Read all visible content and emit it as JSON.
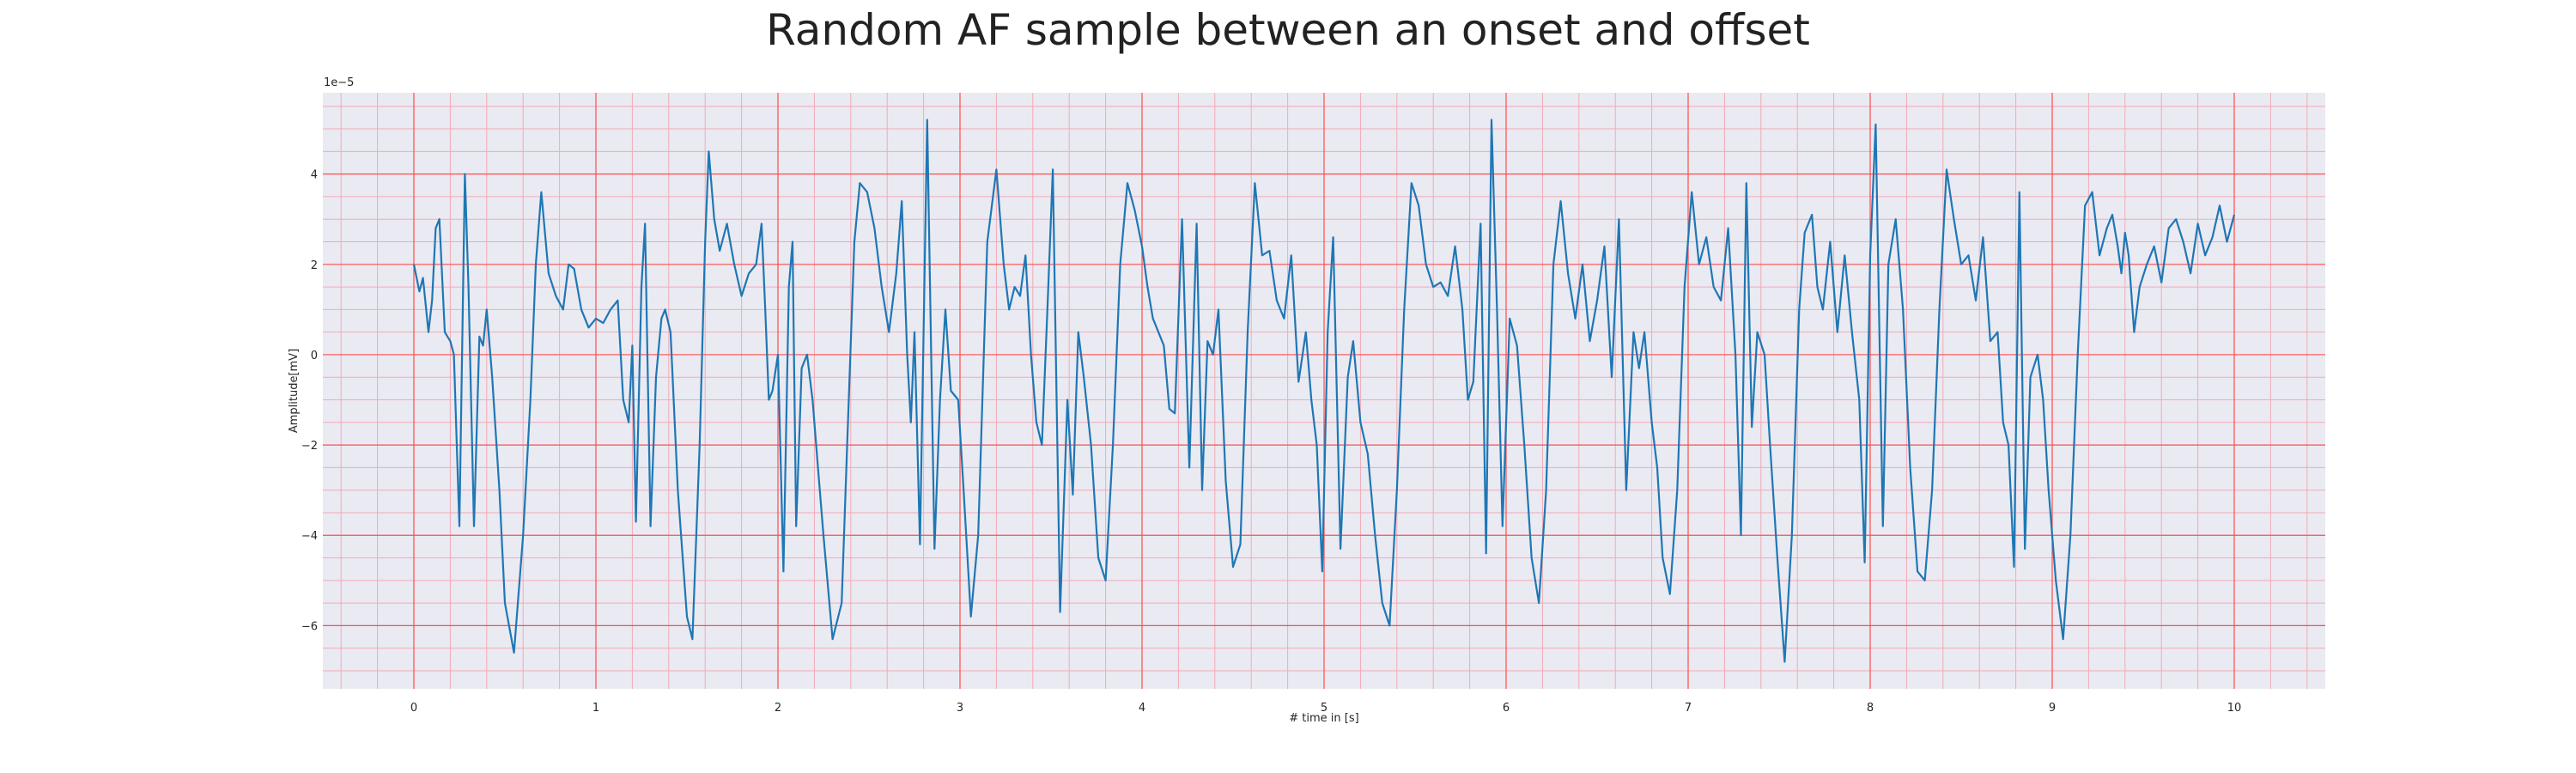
{
  "chart_data": {
    "type": "line",
    "title": "Random AF sample between an onset and offset",
    "xlabel": "# time in [s]",
    "ylabel": "Amplitude[mV]",
    "y_offset_label": "1e−5",
    "xlim": [
      -0.5,
      10.5
    ],
    "ylim": [
      -7.4,
      5.8
    ],
    "x_ticks": [
      0,
      1,
      2,
      3,
      4,
      5,
      6,
      7,
      8,
      9,
      10
    ],
    "x_tick_labels": [
      "0",
      "1",
      "2",
      "3",
      "4",
      "5",
      "6",
      "7",
      "8",
      "9",
      "10"
    ],
    "y_ticks": [
      4,
      2,
      0,
      -2,
      -4,
      -6
    ],
    "y_tick_labels": [
      "4",
      "2",
      "0",
      "−2",
      "−4",
      "−6"
    ],
    "grid": true,
    "colors": {
      "background": "#eaeaf2",
      "major_grid": "#ff4d4d",
      "minor_grid": "#f2aab6",
      "line": "#1f77b4"
    },
    "series": [
      {
        "values": [
          [
            0.0,
            2.0
          ],
          [
            0.03,
            1.4
          ],
          [
            0.05,
            1.7
          ],
          [
            0.08,
            0.5
          ],
          [
            0.1,
            1.2
          ],
          [
            0.12,
            2.8
          ],
          [
            0.14,
            3.0
          ],
          [
            0.17,
            0.5
          ],
          [
            0.2,
            0.3
          ],
          [
            0.22,
            0.0
          ],
          [
            0.25,
            -3.8
          ],
          [
            0.28,
            4.0
          ],
          [
            0.3,
            1.5
          ],
          [
            0.33,
            -3.8
          ],
          [
            0.36,
            0.4
          ],
          [
            0.38,
            0.2
          ],
          [
            0.4,
            1.0
          ],
          [
            0.43,
            -0.5
          ],
          [
            0.47,
            -3.0
          ],
          [
            0.5,
            -5.5
          ],
          [
            0.55,
            -6.6
          ],
          [
            0.6,
            -4.0
          ],
          [
            0.64,
            -1.0
          ],
          [
            0.67,
            2.0
          ],
          [
            0.7,
            3.6
          ],
          [
            0.74,
            1.8
          ],
          [
            0.78,
            1.3
          ],
          [
            0.82,
            1.0
          ],
          [
            0.85,
            2.0
          ],
          [
            0.88,
            1.9
          ],
          [
            0.92,
            1.0
          ],
          [
            0.96,
            0.6
          ],
          [
            1.0,
            0.8
          ],
          [
            1.04,
            0.7
          ],
          [
            1.08,
            1.0
          ],
          [
            1.12,
            1.2
          ],
          [
            1.15,
            -1.0
          ],
          [
            1.18,
            -1.5
          ],
          [
            1.2,
            0.2
          ],
          [
            1.22,
            -3.7
          ],
          [
            1.25,
            1.5
          ],
          [
            1.27,
            2.9
          ],
          [
            1.3,
            -3.8
          ],
          [
            1.33,
            -0.5
          ],
          [
            1.36,
            0.8
          ],
          [
            1.38,
            1.0
          ],
          [
            1.41,
            0.5
          ],
          [
            1.45,
            -3.0
          ],
          [
            1.5,
            -5.8
          ],
          [
            1.53,
            -6.3
          ],
          [
            1.57,
            -2.0
          ],
          [
            1.6,
            2.5
          ],
          [
            1.62,
            4.5
          ],
          [
            1.65,
            3.0
          ],
          [
            1.68,
            2.3
          ],
          [
            1.72,
            2.9
          ],
          [
            1.76,
            2.0
          ],
          [
            1.8,
            1.3
          ],
          [
            1.84,
            1.8
          ],
          [
            1.88,
            2.0
          ],
          [
            1.91,
            2.9
          ],
          [
            1.93,
            1.0
          ],
          [
            1.95,
            -1.0
          ],
          [
            1.97,
            -0.8
          ],
          [
            2.0,
            0.0
          ],
          [
            2.03,
            -4.8
          ],
          [
            2.06,
            1.5
          ],
          [
            2.08,
            2.5
          ],
          [
            2.1,
            -3.8
          ],
          [
            2.13,
            -0.3
          ],
          [
            2.16,
            0.0
          ],
          [
            2.19,
            -1.0
          ],
          [
            2.22,
            -2.5
          ],
          [
            2.25,
            -4.0
          ],
          [
            2.3,
            -6.3
          ],
          [
            2.35,
            -5.5
          ],
          [
            2.38,
            -2.0
          ],
          [
            2.42,
            2.5
          ],
          [
            2.45,
            3.8
          ],
          [
            2.49,
            3.6
          ],
          [
            2.53,
            2.8
          ],
          [
            2.57,
            1.5
          ],
          [
            2.61,
            0.5
          ],
          [
            2.65,
            1.8
          ],
          [
            2.68,
            3.4
          ],
          [
            2.71,
            0.0
          ],
          [
            2.73,
            -1.5
          ],
          [
            2.75,
            0.5
          ],
          [
            2.78,
            -4.2
          ],
          [
            2.82,
            5.2
          ],
          [
            2.86,
            -4.3
          ],
          [
            2.89,
            -1.0
          ],
          [
            2.92,
            1.0
          ],
          [
            2.95,
            -0.8
          ],
          [
            2.99,
            -1.0
          ],
          [
            3.02,
            -3.0
          ],
          [
            3.06,
            -5.8
          ],
          [
            3.1,
            -4.0
          ],
          [
            3.15,
            2.5
          ],
          [
            3.2,
            4.1
          ],
          [
            3.24,
            2.0
          ],
          [
            3.27,
            1.0
          ],
          [
            3.3,
            1.5
          ],
          [
            3.33,
            1.3
          ],
          [
            3.36,
            2.2
          ],
          [
            3.39,
            0.0
          ],
          [
            3.42,
            -1.5
          ],
          [
            3.45,
            -2.0
          ],
          [
            3.48,
            1.0
          ],
          [
            3.51,
            4.1
          ],
          [
            3.55,
            -5.7
          ],
          [
            3.59,
            -1.0
          ],
          [
            3.62,
            -3.1
          ],
          [
            3.65,
            0.5
          ],
          [
            3.68,
            -0.5
          ],
          [
            3.72,
            -2.0
          ],
          [
            3.76,
            -4.5
          ],
          [
            3.8,
            -5.0
          ],
          [
            3.84,
            -2.0
          ],
          [
            3.88,
            2.0
          ],
          [
            3.92,
            3.8
          ],
          [
            3.96,
            3.2
          ],
          [
            4.0,
            2.4
          ],
          [
            4.03,
            1.5
          ],
          [
            4.06,
            0.8
          ],
          [
            4.09,
            0.5
          ],
          [
            4.12,
            0.2
          ],
          [
            4.15,
            -1.2
          ],
          [
            4.18,
            -1.3
          ],
          [
            4.22,
            3.0
          ],
          [
            4.26,
            -2.5
          ],
          [
            4.3,
            2.9
          ],
          [
            4.33,
            -3.0
          ],
          [
            4.36,
            0.3
          ],
          [
            4.39,
            0.0
          ],
          [
            4.42,
            1.0
          ],
          [
            4.46,
            -2.8
          ],
          [
            4.5,
            -4.7
          ],
          [
            4.54,
            -4.2
          ],
          [
            4.58,
            0.5
          ],
          [
            4.62,
            3.8
          ],
          [
            4.66,
            2.2
          ],
          [
            4.7,
            2.3
          ],
          [
            4.74,
            1.2
          ],
          [
            4.78,
            0.8
          ],
          [
            4.82,
            2.2
          ],
          [
            4.86,
            -0.6
          ],
          [
            4.9,
            0.5
          ],
          [
            4.93,
            -1.0
          ],
          [
            4.96,
            -2.0
          ],
          [
            4.99,
            -4.8
          ],
          [
            5.02,
            0.5
          ],
          [
            5.05,
            2.6
          ],
          [
            5.09,
            -4.3
          ],
          [
            5.13,
            -0.5
          ],
          [
            5.16,
            0.3
          ],
          [
            5.2,
            -1.5
          ],
          [
            5.24,
            -2.2
          ],
          [
            5.28,
            -4.0
          ],
          [
            5.32,
            -5.5
          ],
          [
            5.36,
            -6.0
          ],
          [
            5.4,
            -3.0
          ],
          [
            5.44,
            1.0
          ],
          [
            5.48,
            3.8
          ],
          [
            5.52,
            3.3
          ],
          [
            5.56,
            2.0
          ],
          [
            5.6,
            1.5
          ],
          [
            5.64,
            1.6
          ],
          [
            5.68,
            1.3
          ],
          [
            5.72,
            2.4
          ],
          [
            5.76,
            1.0
          ],
          [
            5.79,
            -1.0
          ],
          [
            5.82,
            -0.6
          ],
          [
            5.86,
            2.9
          ],
          [
            5.89,
            -4.4
          ],
          [
            5.92,
            5.2
          ],
          [
            5.95,
            1.0
          ],
          [
            5.98,
            -3.8
          ],
          [
            6.02,
            0.8
          ],
          [
            6.06,
            0.2
          ],
          [
            6.1,
            -2.0
          ],
          [
            6.14,
            -4.5
          ],
          [
            6.18,
            -5.5
          ],
          [
            6.22,
            -3.0
          ],
          [
            6.26,
            2.0
          ],
          [
            6.3,
            3.4
          ],
          [
            6.34,
            1.8
          ],
          [
            6.38,
            0.8
          ],
          [
            6.42,
            2.0
          ],
          [
            6.46,
            0.3
          ],
          [
            6.5,
            1.2
          ],
          [
            6.54,
            2.4
          ],
          [
            6.58,
            -0.5
          ],
          [
            6.62,
            3.0
          ],
          [
            6.66,
            -3.0
          ],
          [
            6.7,
            0.5
          ],
          [
            6.73,
            -0.3
          ],
          [
            6.76,
            0.5
          ],
          [
            6.8,
            -1.5
          ],
          [
            6.83,
            -2.5
          ],
          [
            6.86,
            -4.5
          ],
          [
            6.9,
            -5.3
          ],
          [
            6.94,
            -3.0
          ],
          [
            6.98,
            1.5
          ],
          [
            7.02,
            3.6
          ],
          [
            7.06,
            2.0
          ],
          [
            7.1,
            2.6
          ],
          [
            7.14,
            1.5
          ],
          [
            7.18,
            1.2
          ],
          [
            7.22,
            2.8
          ],
          [
            7.26,
            0.0
          ],
          [
            7.29,
            -4.0
          ],
          [
            7.32,
            3.8
          ],
          [
            7.35,
            -1.6
          ],
          [
            7.38,
            0.5
          ],
          [
            7.42,
            0.0
          ],
          [
            7.45,
            -2.0
          ],
          [
            7.49,
            -4.5
          ],
          [
            7.53,
            -6.8
          ],
          [
            7.57,
            -4.0
          ],
          [
            7.61,
            1.0
          ],
          [
            7.64,
            2.7
          ],
          [
            7.68,
            3.1
          ],
          [
            7.71,
            1.5
          ],
          [
            7.74,
            1.0
          ],
          [
            7.78,
            2.5
          ],
          [
            7.82,
            0.5
          ],
          [
            7.86,
            2.2
          ],
          [
            7.9,
            0.5
          ],
          [
            7.94,
            -1.0
          ],
          [
            7.97,
            -4.6
          ],
          [
            8.0,
            2.2
          ],
          [
            8.03,
            5.1
          ],
          [
            8.07,
            -3.8
          ],
          [
            8.1,
            2.0
          ],
          [
            8.14,
            3.0
          ],
          [
            8.18,
            1.0
          ],
          [
            8.22,
            -2.5
          ],
          [
            8.26,
            -4.8
          ],
          [
            8.3,
            -5.0
          ],
          [
            8.34,
            -3.0
          ],
          [
            8.38,
            1.0
          ],
          [
            8.42,
            4.1
          ],
          [
            8.46,
            3.0
          ],
          [
            8.5,
            2.0
          ],
          [
            8.54,
            2.2
          ],
          [
            8.58,
            1.2
          ],
          [
            8.62,
            2.6
          ],
          [
            8.66,
            0.3
          ],
          [
            8.7,
            0.5
          ],
          [
            8.73,
            -1.5
          ],
          [
            8.76,
            -2.0
          ],
          [
            8.79,
            -4.7
          ],
          [
            8.82,
            3.6
          ],
          [
            8.85,
            -4.3
          ],
          [
            8.88,
            -0.5
          ],
          [
            8.92,
            0.0
          ],
          [
            8.95,
            -1.0
          ],
          [
            8.98,
            -3.0
          ],
          [
            9.02,
            -5.0
          ],
          [
            9.06,
            -6.3
          ],
          [
            9.1,
            -4.0
          ],
          [
            9.14,
            0.0
          ],
          [
            9.18,
            3.3
          ],
          [
            9.22,
            3.6
          ],
          [
            9.26,
            2.2
          ],
          [
            9.3,
            2.8
          ],
          [
            9.33,
            3.1
          ],
          [
            9.36,
            2.4
          ],
          [
            9.38,
            1.8
          ],
          [
            9.4,
            2.7
          ],
          [
            9.42,
            2.2
          ],
          [
            9.45,
            0.5
          ],
          [
            9.48,
            1.5
          ],
          [
            9.52,
            2.0
          ],
          [
            9.56,
            2.4
          ],
          [
            9.6,
            1.6
          ],
          [
            9.64,
            2.8
          ],
          [
            9.68,
            3.0
          ],
          [
            9.72,
            2.5
          ],
          [
            9.76,
            1.8
          ],
          [
            9.8,
            2.9
          ],
          [
            9.84,
            2.2
          ],
          [
            9.88,
            2.6
          ],
          [
            9.92,
            3.3
          ],
          [
            9.96,
            2.5
          ],
          [
            10.0,
            3.1
          ]
        ]
      }
    ]
  }
}
